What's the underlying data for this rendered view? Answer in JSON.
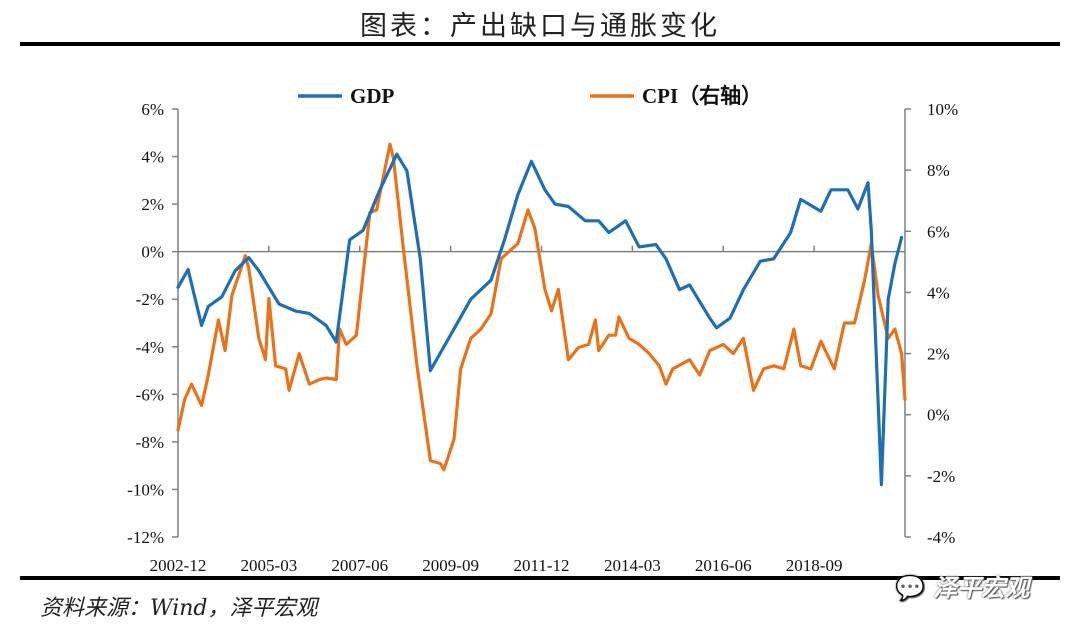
{
  "title": "图表：产出缺口与通胀变化",
  "source": "资料来源：Wind，泽平宏观",
  "watermark": "泽平宏观",
  "watermark_icon": "wechat-icon",
  "chart_data": {
    "type": "line",
    "title": "图表：产出缺口与通胀变化",
    "xlim": [
      "2002-12",
      "2020-12"
    ],
    "x_tick_labels": [
      "2002-12",
      "2005-03",
      "2007-06",
      "2009-09",
      "2011-12",
      "2014-03",
      "2016-06",
      "2018-09"
    ],
    "y_left": {
      "lim": [
        -12,
        6
      ],
      "ticks": [
        -12,
        -10,
        -8,
        -6,
        -4,
        -2,
        0,
        2,
        4,
        6
      ],
      "tick_labels": [
        "-12%",
        "-10%",
        "-8%",
        "-6%",
        "-4%",
        "-2%",
        "0%",
        "2%",
        "4%",
        "6%"
      ]
    },
    "y_right": {
      "lim": [
        -4,
        10
      ],
      "ticks": [
        -4,
        -2,
        0,
        2,
        4,
        6,
        8,
        10
      ],
      "tick_labels": [
        "-4%",
        "-2%",
        "0%",
        "2%",
        "4%",
        "6%",
        "8%",
        "10%"
      ]
    },
    "zero_line": true,
    "grid": false,
    "legend_position": "top",
    "series": [
      {
        "name": "GDP",
        "axis": "left",
        "color": "#1f6fb5",
        "points": [
          [
            "2002-12",
            -1.5
          ],
          [
            "2003-03",
            -0.75
          ],
          [
            "2003-07",
            -3.1
          ],
          [
            "2003-09",
            -2.3
          ],
          [
            "2004-01",
            -1.9
          ],
          [
            "2004-05",
            -0.8
          ],
          [
            "2004-09",
            -0.25
          ],
          [
            "2004-12",
            -0.8
          ],
          [
            "2005-06",
            -2.2
          ],
          [
            "2005-11",
            -2.5
          ],
          [
            "2006-03",
            -2.6
          ],
          [
            "2006-08",
            -3.1
          ],
          [
            "2006-11",
            -3.8
          ],
          [
            "2007-03",
            0.5
          ],
          [
            "2007-07",
            0.9
          ],
          [
            "2007-12",
            2.6
          ],
          [
            "2008-05",
            4.1
          ],
          [
            "2008-08",
            3.4
          ],
          [
            "2008-12",
            -0.3
          ],
          [
            "2009-03",
            -5.0
          ],
          [
            "2009-09",
            -3.5
          ],
          [
            "2010-03",
            -2.0
          ],
          [
            "2010-09",
            -1.2
          ],
          [
            "2011-01",
            0.5
          ],
          [
            "2011-05",
            2.4
          ],
          [
            "2011-09",
            3.8
          ],
          [
            "2012-01",
            2.6
          ],
          [
            "2012-04",
            2.0
          ],
          [
            "2012-08",
            1.9
          ],
          [
            "2013-01",
            1.3
          ],
          [
            "2013-05",
            1.3
          ],
          [
            "2013-08",
            0.8
          ],
          [
            "2014-01",
            1.3
          ],
          [
            "2014-05",
            0.2
          ],
          [
            "2014-10",
            0.3
          ],
          [
            "2015-01",
            -0.3
          ],
          [
            "2015-05",
            -1.6
          ],
          [
            "2015-08",
            -1.4
          ],
          [
            "2016-02",
            -2.8
          ],
          [
            "2016-04",
            -3.2
          ],
          [
            "2016-08",
            -2.8
          ],
          [
            "2016-12",
            -1.6
          ],
          [
            "2017-05",
            -0.4
          ],
          [
            "2017-09",
            -0.3
          ],
          [
            "2018-02",
            0.8
          ],
          [
            "2018-05",
            2.2
          ],
          [
            "2018-11",
            1.7
          ],
          [
            "2019-02",
            2.6
          ],
          [
            "2019-07",
            2.6
          ],
          [
            "2019-10",
            1.8
          ],
          [
            "2020-01",
            2.9
          ],
          [
            "2020-02",
            0.9
          ],
          [
            "2020-05",
            -9.8
          ],
          [
            "2020-07",
            -2.0
          ],
          [
            "2020-09",
            -0.5
          ],
          [
            "2020-11",
            0.6
          ]
        ]
      },
      {
        "name": "CPI（右轴）",
        "axis": "right",
        "color": "#e8731a",
        "points": [
          [
            "2002-12",
            -0.5
          ],
          [
            "2003-02",
            0.5
          ],
          [
            "2003-04",
            1.0
          ],
          [
            "2003-07",
            0.3
          ],
          [
            "2003-09",
            1.3
          ],
          [
            "2003-12",
            3.1
          ],
          [
            "2004-02",
            2.1
          ],
          [
            "2004-04",
            3.9
          ],
          [
            "2004-08",
            5.2
          ],
          [
            "2004-09",
            4.8
          ],
          [
            "2004-12",
            2.5
          ],
          [
            "2005-02",
            1.8
          ],
          [
            "2005-03",
            3.8
          ],
          [
            "2005-05",
            1.6
          ],
          [
            "2005-08",
            1.5
          ],
          [
            "2005-09",
            0.8
          ],
          [
            "2005-12",
            2.0
          ],
          [
            "2006-03",
            1.0
          ],
          [
            "2006-06",
            1.15
          ],
          [
            "2006-08",
            1.2
          ],
          [
            "2006-11",
            1.15
          ],
          [
            "2006-12",
            2.8
          ],
          [
            "2007-02",
            2.3
          ],
          [
            "2007-05",
            2.6
          ],
          [
            "2007-09",
            6.6
          ],
          [
            "2007-11",
            6.7
          ],
          [
            "2008-03",
            8.85
          ],
          [
            "2008-04",
            8.4
          ],
          [
            "2008-07",
            5.4
          ],
          [
            "2008-11",
            1.6
          ],
          [
            "2009-03",
            -1.5
          ],
          [
            "2009-06",
            -1.6
          ],
          [
            "2009-07",
            -1.8
          ],
          [
            "2009-10",
            -0.8
          ],
          [
            "2009-12",
            1.5
          ],
          [
            "2010-03",
            2.5
          ],
          [
            "2010-06",
            2.8
          ],
          [
            "2010-09",
            3.3
          ],
          [
            "2010-12",
            5.1
          ],
          [
            "2011-03",
            5.4
          ],
          [
            "2011-05",
            5.6
          ],
          [
            "2011-08",
            6.7
          ],
          [
            "2011-10",
            6.1
          ],
          [
            "2012-01",
            4.1
          ],
          [
            "2012-03",
            3.4
          ],
          [
            "2012-05",
            4.1
          ],
          [
            "2012-08",
            1.8
          ],
          [
            "2012-11",
            2.2
          ],
          [
            "2013-02",
            2.3
          ],
          [
            "2013-04",
            3.1
          ],
          [
            "2013-05",
            2.1
          ],
          [
            "2013-08",
            2.6
          ],
          [
            "2013-10",
            2.6
          ],
          [
            "2013-11",
            3.2
          ],
          [
            "2014-02",
            2.5
          ],
          [
            "2014-05",
            2.3
          ],
          [
            "2014-08",
            2.0
          ],
          [
            "2014-11",
            1.6
          ],
          [
            "2015-01",
            1.0
          ],
          [
            "2015-03",
            1.5
          ],
          [
            "2015-08",
            1.8
          ],
          [
            "2015-11",
            1.3
          ],
          [
            "2016-02",
            2.1
          ],
          [
            "2016-06",
            2.3
          ],
          [
            "2016-09",
            2.0
          ],
          [
            "2016-12",
            2.5
          ],
          [
            "2017-03",
            0.8
          ],
          [
            "2017-06",
            1.5
          ],
          [
            "2017-09",
            1.6
          ],
          [
            "2017-12",
            1.5
          ],
          [
            "2018-03",
            2.8
          ],
          [
            "2018-05",
            1.6
          ],
          [
            "2018-08",
            1.5
          ],
          [
            "2018-11",
            2.4
          ],
          [
            "2019-03",
            1.5
          ],
          [
            "2019-06",
            3.0
          ],
          [
            "2019-09",
            3.0
          ],
          [
            "2019-12",
            4.4
          ],
          [
            "2020-02",
            5.6
          ],
          [
            "2020-04",
            3.9
          ],
          [
            "2020-07",
            2.5
          ],
          [
            "2020-09",
            2.8
          ],
          [
            "2020-11",
            2.0
          ],
          [
            "2020-12",
            0.5
          ]
        ]
      }
    ]
  }
}
